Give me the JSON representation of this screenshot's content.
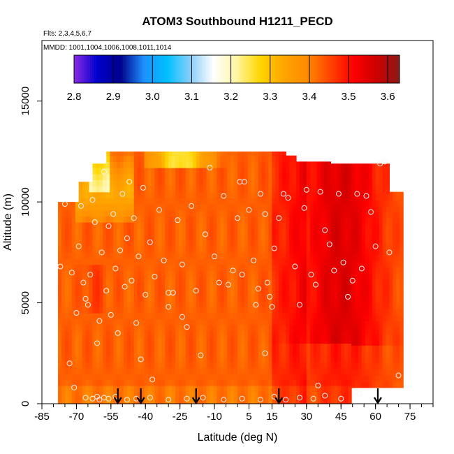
{
  "chart_data": {
    "type": "heatmap",
    "title": "ATOM3 Southbound H1211_PECD",
    "subtitle_flights": "Flts: 2,3,4,5,6,7",
    "subtitle_dates": "MMDD: 1001,1004,1006,1008,1011,1014",
    "xlabel": "Latitude (deg N)",
    "ylabel": "Altitude (m)",
    "xlim": [
      -85,
      85
    ],
    "ylim": [
      0,
      18000
    ],
    "x_ticks": [
      -85,
      -70,
      -55,
      -40,
      -25,
      -10,
      5,
      15,
      30,
      45,
      60,
      75
    ],
    "x_tick_labels": [
      "-85",
      "-70",
      "-55",
      "-40",
      "-25",
      "-10",
      "5",
      "15",
      "30",
      "45",
      "60",
      "75"
    ],
    "y_ticks": [
      0,
      5000,
      10000,
      15000
    ],
    "y_tick_labels": [
      "0",
      "5000",
      "10000",
      "15000"
    ],
    "colorbar": {
      "min": 2.8,
      "max": 3.63,
      "ticks": [
        2.8,
        2.9,
        3.0,
        3.1,
        3.2,
        3.3,
        3.4,
        3.5,
        3.6
      ],
      "tick_labels": [
        "2.8",
        "2.9",
        "3.0",
        "3.1",
        "3.2",
        "3.3",
        "3.4",
        "3.5",
        "3.6"
      ],
      "colors": [
        "#8a2be2",
        "#0000cd",
        "#00008b",
        "#1e90ff",
        "#00bfff",
        "#87cefa",
        "#ffffff",
        "#fff5a0",
        "#ffd700",
        "#ffa500",
        "#ff8c00",
        "#ff4500",
        "#ff0000",
        "#cc0000",
        "#8b1a1a"
      ]
    },
    "arrow_latitudes": [
      -52,
      -42,
      -18,
      18,
      61
    ],
    "field_extent": {
      "lat_min": -78,
      "lat_max": 72,
      "alt_min": 0,
      "alt_max": 12500
    },
    "sample_points": [
      [
        -77,
        6800
      ],
      [
        -75,
        9900
      ],
      [
        -73,
        2000
      ],
      [
        -72,
        6500
      ],
      [
        -71,
        800
      ],
      [
        -70,
        4500
      ],
      [
        -69,
        7800
      ],
      [
        -68,
        9800
      ],
      [
        -67,
        6000
      ],
      [
        -66,
        5200
      ],
      [
        -65,
        4900
      ],
      [
        -64,
        6400
      ],
      [
        -63,
        10100
      ],
      [
        -62,
        9000
      ],
      [
        -61,
        3000
      ],
      [
        -60,
        4100
      ],
      [
        -59,
        7500
      ],
      [
        -58,
        11500
      ],
      [
        -57,
        5600
      ],
      [
        -56,
        8800
      ],
      [
        -55,
        4400
      ],
      [
        -54,
        9400
      ],
      [
        -53,
        6700
      ],
      [
        -52,
        3500
      ],
      [
        -51,
        7600
      ],
      [
        -50,
        10400
      ],
      [
        -49,
        5800
      ],
      [
        -48,
        8200
      ],
      [
        -47,
        11000
      ],
      [
        -46,
        6100
      ],
      [
        -45,
        9200
      ],
      [
        -44,
        4000
      ],
      [
        -43,
        7300
      ],
      [
        -42,
        2200
      ],
      [
        -41,
        10700
      ],
      [
        -40,
        5400
      ],
      [
        -38,
        8000
      ],
      [
        -36,
        6300
      ],
      [
        -34,
        9600
      ],
      [
        -32,
        7100
      ],
      [
        -30,
        4800
      ],
      [
        -28,
        5500
      ],
      [
        -26,
        9100
      ],
      [
        -24,
        6900
      ],
      [
        -22,
        3800
      ],
      [
        -20,
        9800
      ],
      [
        -18,
        5600
      ],
      [
        -16,
        2400
      ],
      [
        -14,
        8400
      ],
      [
        -12,
        11700
      ],
      [
        -10,
        7300
      ],
      [
        -8,
        6000
      ],
      [
        -6,
        10300
      ],
      [
        -4,
        5900
      ],
      [
        -2,
        6600
      ],
      [
        0,
        9200
      ],
      [
        1,
        11000
      ],
      [
        2,
        6400
      ],
      [
        3,
        11000
      ],
      [
        5,
        9600
      ],
      [
        7,
        7100
      ],
      [
        8,
        4900
      ],
      [
        9,
        5700
      ],
      [
        10,
        10400
      ],
      [
        12,
        9400
      ],
      [
        13,
        6000
      ],
      [
        14,
        5300
      ],
      [
        15,
        4800
      ],
      [
        16,
        7700
      ],
      [
        18,
        9200
      ],
      [
        20,
        10400
      ],
      [
        22,
        10200
      ],
      [
        25,
        6800
      ],
      [
        27,
        4900
      ],
      [
        29,
        9700
      ],
      [
        30,
        10600
      ],
      [
        32,
        6400
      ],
      [
        34,
        5900
      ],
      [
        36,
        10500
      ],
      [
        38,
        8600
      ],
      [
        40,
        7900
      ],
      [
        42,
        6600
      ],
      [
        44,
        10400
      ],
      [
        46,
        7000
      ],
      [
        48,
        5300
      ],
      [
        50,
        6100
      ],
      [
        52,
        10400
      ],
      [
        54,
        6700
      ],
      [
        56,
        10300
      ],
      [
        58,
        9500
      ],
      [
        60,
        7800
      ],
      [
        62,
        11900
      ],
      [
        64,
        12000
      ],
      [
        66,
        7500
      ],
      [
        70,
        1400
      ],
      [
        -60,
        200
      ],
      [
        -58,
        300
      ],
      [
        -56,
        250
      ],
      [
        -53,
        350
      ],
      [
        -48,
        200
      ],
      [
        -44,
        250
      ],
      [
        -38,
        300
      ],
      [
        -30,
        200
      ],
      [
        -22,
        250
      ],
      [
        -15,
        300
      ],
      [
        -6,
        200
      ],
      [
        2,
        250
      ],
      [
        10,
        200
      ],
      [
        16,
        350
      ],
      [
        21,
        200
      ],
      [
        27,
        300
      ],
      [
        33,
        250
      ],
      [
        35,
        900
      ],
      [
        38,
        400
      ],
      [
        45,
        250
      ],
      [
        53,
        500
      ],
      [
        -37,
        1200
      ],
      [
        -66,
        300
      ],
      [
        -63,
        250
      ],
      [
        -61,
        350
      ],
      [
        -30,
        5500
      ],
      [
        -24,
        4300
      ],
      [
        12,
        2500
      ]
    ]
  }
}
